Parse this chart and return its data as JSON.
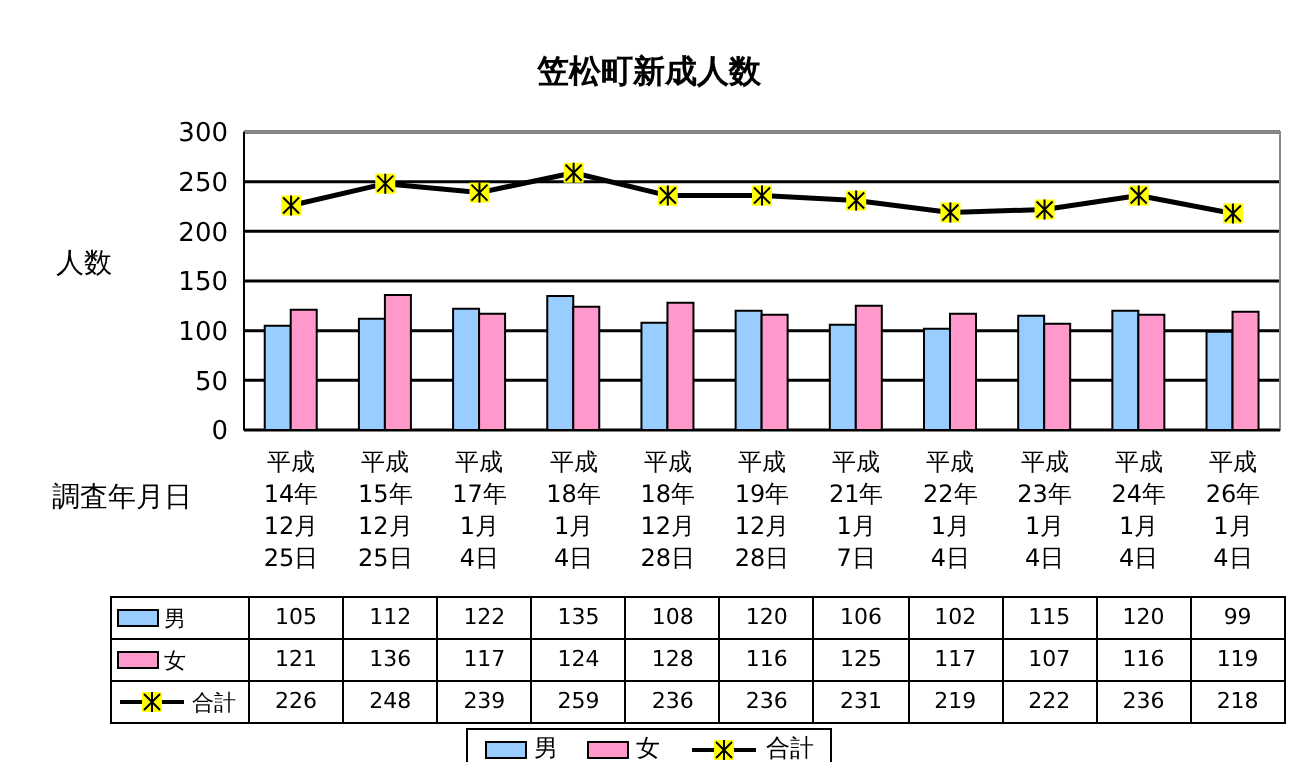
{
  "chart_data": {
    "type": "bar",
    "title": "笠松町新成人数",
    "xlabel": "調査年月日",
    "ylabel": "人数",
    "categories": [
      "平成14年12月25日",
      "平成15年12月25日",
      "平成17年1月 4日",
      "平成18年1月 4日",
      "平成18年12月28日",
      "平成19年12月28日",
      "平成21年1月 7日",
      "平成22年1月 4日",
      "平成23年1月 4日",
      "平成24年1月 4日",
      "平成26年1月 4日"
    ],
    "series": [
      {
        "name": "男",
        "color": "#99ccff",
        "values": [
          105,
          112,
          122,
          135,
          108,
          120,
          106,
          102,
          115,
          120,
          99
        ]
      },
      {
        "name": "女",
        "color": "#ff99cc",
        "values": [
          121,
          136,
          117,
          124,
          128,
          116,
          125,
          117,
          107,
          116,
          119
        ]
      },
      {
        "name": "合計",
        "type": "line",
        "color": "#000000",
        "marker": "cross",
        "values": [
          226,
          248,
          239,
          259,
          236,
          236,
          231,
          219,
          222,
          236,
          218
        ]
      }
    ],
    "ylim": [
      0,
      300
    ],
    "yticks": [
      0,
      50,
      100,
      150,
      200,
      250,
      300
    ],
    "grid": "y",
    "legend": "bottom",
    "data_labels": true
  }
}
